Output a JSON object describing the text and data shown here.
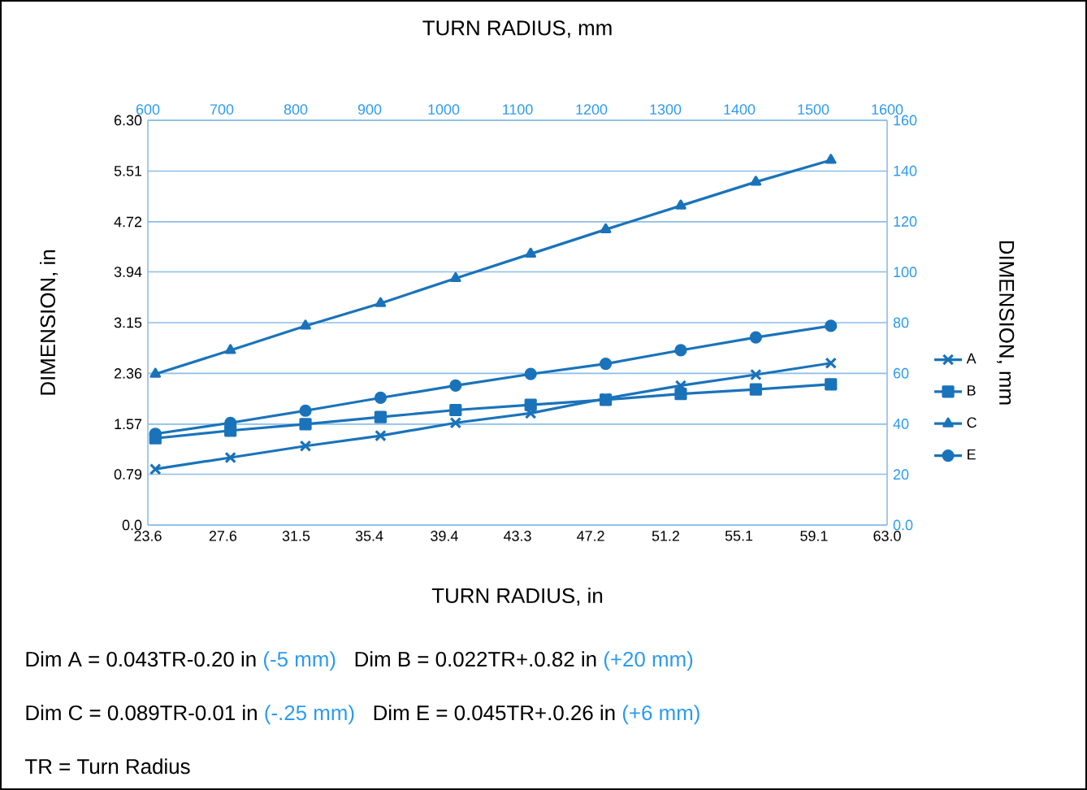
{
  "chart_data": {
    "type": "line",
    "xlabel": "TURN RADIUS, in",
    "ylabel": "DIMENSION, in",
    "x2label": "TURN RADIUS, mm",
    "y2label": "DIMENSION, mm",
    "x": [
      24,
      28,
      32,
      36,
      40,
      44,
      48,
      52,
      56,
      60
    ],
    "series": [
      {
        "name": "A",
        "color": "#1a73ba",
        "marker": "cross",
        "values": [
          0.87,
          1.05,
          1.23,
          1.39,
          1.59,
          1.74,
          1.97,
          2.17,
          2.34,
          2.52
        ]
      },
      {
        "name": "B",
        "color": "#1a73ba",
        "marker": "square",
        "values": [
          1.35,
          1.47,
          1.57,
          1.68,
          1.79,
          1.87,
          1.95,
          2.04,
          2.11,
          2.19
        ]
      },
      {
        "name": "C",
        "color": "#1a73ba",
        "marker": "triangle",
        "values": [
          2.35,
          2.72,
          3.1,
          3.45,
          3.84,
          4.22,
          4.6,
          4.97,
          5.34,
          5.68
        ]
      },
      {
        "name": "E",
        "color": "#1a73ba",
        "marker": "circle",
        "values": [
          1.42,
          1.59,
          1.78,
          1.98,
          2.17,
          2.35,
          2.51,
          2.72,
          2.92,
          3.1
        ]
      }
    ],
    "xlim": [
      23.6,
      63.0
    ],
    "xticks": [
      23.6,
      27.6,
      31.5,
      35.4,
      39.4,
      43.3,
      47.2,
      51.2,
      55.1,
      59.1,
      {
        "value": 63.0,
        "label": "63.0"
      }
    ],
    "ylim": [
      0,
      6.3
    ],
    "yticks": [
      {
        "value": 0,
        "label": "0.0"
      },
      0.79,
      1.57,
      2.36,
      3.15,
      3.94,
      4.72,
      5.51,
      {
        "value": 6.3,
        "label": "6.30"
      }
    ],
    "x2lim": [
      600,
      1600
    ],
    "x2ticks": [
      600,
      700,
      800,
      900,
      1000,
      1100,
      1200,
      1300,
      1400,
      1500,
      1600
    ],
    "y2lim": [
      0,
      160
    ],
    "y2ticks": [
      {
        "value": 0,
        "label": "0.0"
      },
      20,
      40,
      60,
      80,
      100,
      120,
      140,
      160
    ],
    "grid": "y",
    "legend": "right",
    "line_style": "solid",
    "annotations": [
      "Dim A = 0.043TR-0.20 in",
      "(-5 mm)",
      "Dim B = 0.022TR+.0.82 in",
      "(+20 mm)",
      "Dim C = 0.089TR-0.01 in",
      "(-.25 mm)",
      "Dim E = 0.045TR+.0.26 in",
      "(+6 mm)",
      "TR = Turn Radius"
    ]
  }
}
